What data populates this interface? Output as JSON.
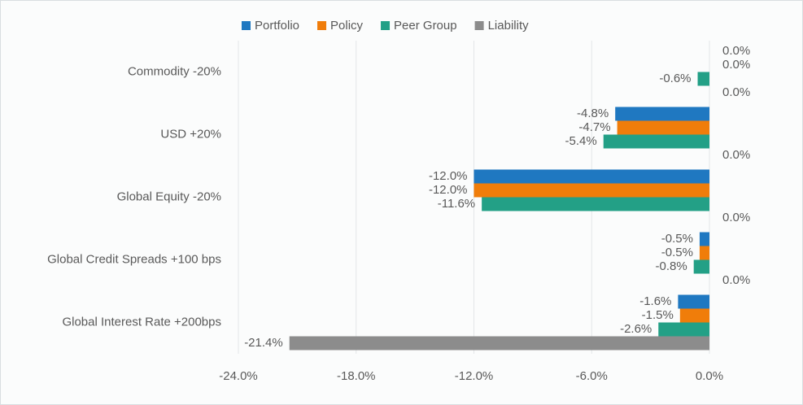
{
  "chart_data": {
    "type": "bar",
    "orientation": "horizontal",
    "categories": [
      "Commodity -20%",
      "USD +20%",
      "Global Equity -20%",
      "Global Credit Spreads +100 bps",
      "Global Interest Rate +200bps"
    ],
    "series": [
      {
        "name": "Portfolio",
        "color": "#1f78c1",
        "values": [
          0.0,
          -4.8,
          -12.0,
          -0.5,
          -1.6
        ],
        "value_labels": [
          "0.0%",
          "-4.8%",
          "-12.0%",
          "-0.5%",
          "-1.6%"
        ]
      },
      {
        "name": "Policy",
        "color": "#f07d0a",
        "values": [
          0.0,
          -4.7,
          -12.0,
          -0.5,
          -1.5
        ],
        "value_labels": [
          "0.0%",
          "-4.7%",
          "-12.0%",
          "-0.5%",
          "-1.5%"
        ]
      },
      {
        "name": "Peer Group",
        "color": "#23a086",
        "values": [
          -0.6,
          -5.4,
          -11.6,
          -0.8,
          -2.6
        ],
        "value_labels": [
          "-0.6%",
          "-5.4%",
          "-11.6%",
          "-0.8%",
          "-2.6%"
        ]
      },
      {
        "name": "Liability",
        "color": "#8c8c8c",
        "values": [
          0.0,
          0.0,
          0.0,
          0.0,
          -21.4
        ],
        "value_labels": [
          "0.0%",
          "0.0%",
          "0.0%",
          "0.0%",
          "-21.4%"
        ]
      }
    ],
    "xlim": [
      -24,
      0
    ],
    "xticks": [
      {
        "value": -24,
        "label": "-24.0%"
      },
      {
        "value": -18,
        "label": "-18.0%"
      },
      {
        "value": -12,
        "label": "-12.0%"
      },
      {
        "value": -6,
        "label": "-6.0%"
      },
      {
        "value": 0,
        "label": "0.0%"
      }
    ],
    "grid": true,
    "legend": "top"
  }
}
